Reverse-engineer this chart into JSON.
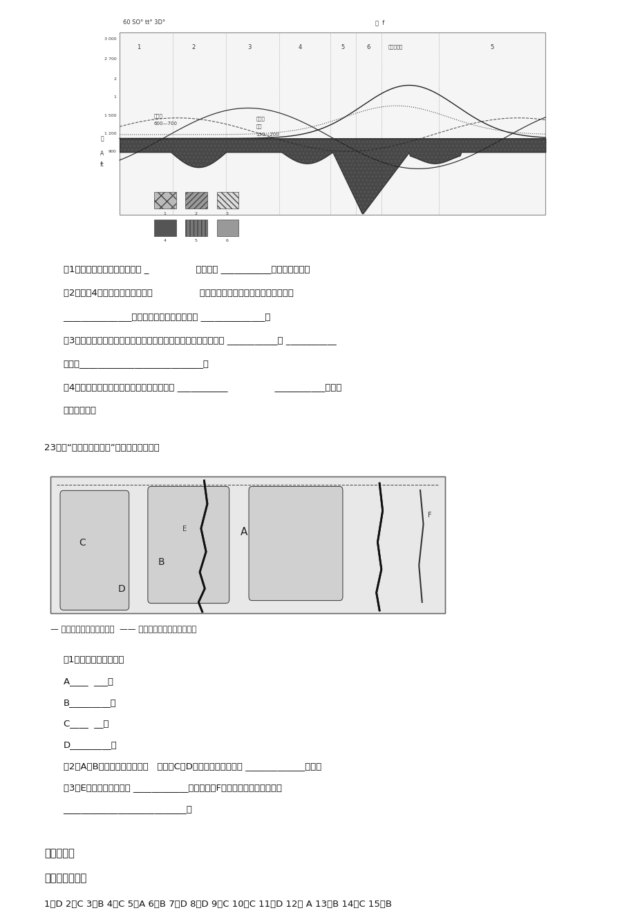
{
  "bg_color": "#ffffff",
  "page_width": 9.2,
  "page_height": 13.03,
  "questions_block1": [
    "（1）风化壳发育最好的地区是 _                ，其次是 ___________（用数字代号）",
    "（2）图中4地区的纬度范围大致是                ，该纬度地带植物生长量较小的原因是",
    "_______________。在地球上最典型的区域是 ______________。",
    "（3）图中四条曲线中，与风化壳发育的厚度有明显对应关系的是 ___________和 ___________",
    "原因是___________________________。",
    "（4）据图可知影响风化壳发育的因素主要有 ___________                ___________等（至",
    "少答三点）。"
  ],
  "q23_title": "23、读“六大板块示意图”，回答下列问题。",
  "plates_legend": "— 生长边界（海岭、裂谷）  —— 消亡边界（海沟、隐没带）",
  "questions_block2": [
    "（1）写出图中板块名称",
    "A____  ___；",
    "B_________；",
    "C____  __；",
    "D_________。",
    "（2）A、B两大板块间的边界属   边界；C、D两大板块间的边界属 _____________边界。",
    "（3）E处高大山脉是由于 ____________而形成的。F处多火山、地震的原因是",
    "___________________________。"
  ],
  "answer_section_title": "参考答案：",
  "answer_subsection": "一、单项选择题",
  "answer_text": "1、D 2、C 3、B 4、C 5、A 6、B 7、D 8、D 9、C 10、C 11、D 12、 A 13、B 14、C 15、B"
}
